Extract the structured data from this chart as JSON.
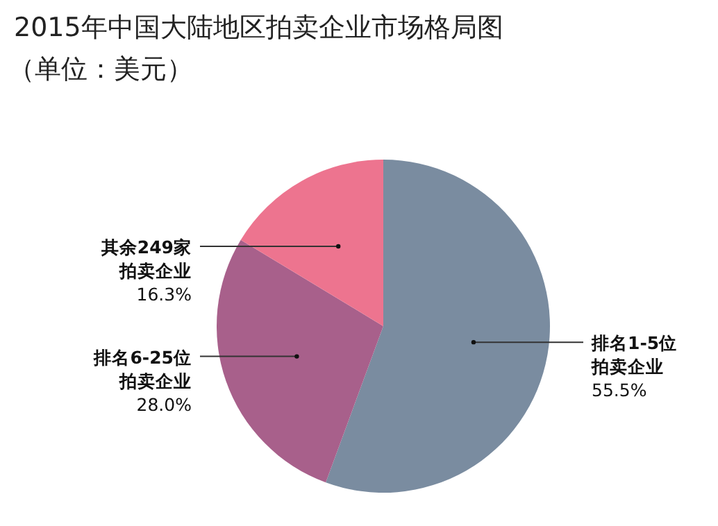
{
  "chart_data": {
    "type": "pie",
    "title": "2015年中国大陆地区拍卖企业市场格局图",
    "subtitle": "（单位：美元）",
    "categories": [
      "排名1-5位拍卖企业",
      "排名6-25位拍卖企业",
      "其余249家拍卖企业"
    ],
    "values": [
      55.5,
      28.0,
      16.3
    ],
    "value_labels": [
      "55.5%",
      "28.0%",
      "16.3%"
    ],
    "colors": [
      "#7a8ca0",
      "#a8608b",
      "#ed748f"
    ]
  }
}
